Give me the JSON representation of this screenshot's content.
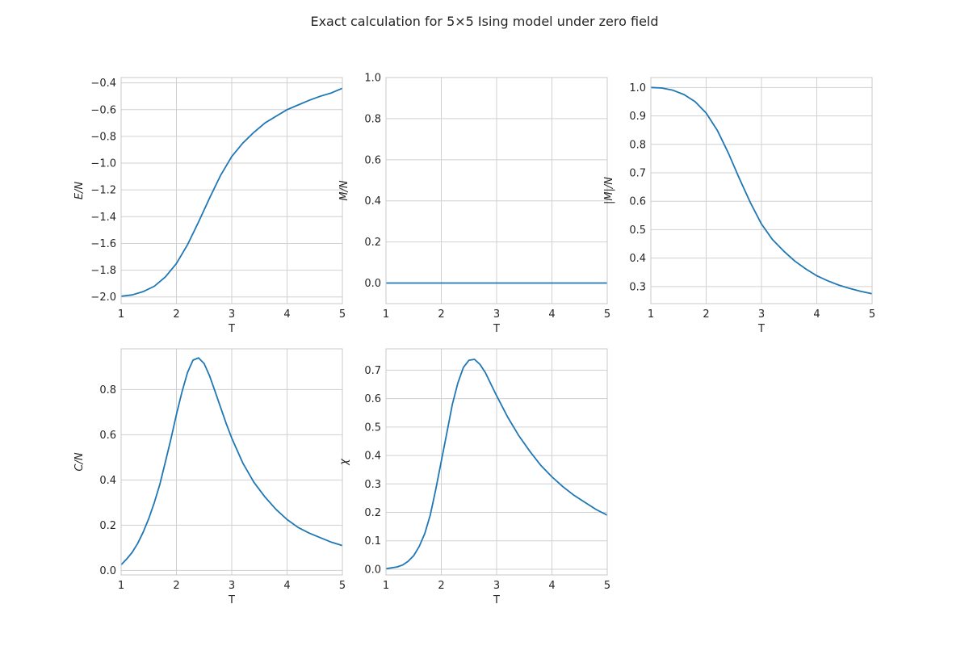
{
  "figure": {
    "title": "Exact calculation for 5×5 Ising model under zero field",
    "line_color": "#1f77b4",
    "grid_color": "#d0d0d0",
    "frame_color": "#c8c8c8"
  },
  "chart_data": [
    {
      "type": "line",
      "xlabel": "T",
      "ylabel": "E/N",
      "xlim": [
        1,
        5
      ],
      "ylim": [
        -2.05,
        -0.36
      ],
      "xticks": [
        1,
        2,
        3,
        4,
        5
      ],
      "yticks": [
        -2.0,
        -1.8,
        -1.6,
        -1.4,
        -1.2,
        -1.0,
        -0.8,
        -0.6,
        -0.4
      ],
      "ytick_labels": [
        "−2.0",
        "−1.8",
        "−1.6",
        "−1.4",
        "−1.2",
        "−1.0",
        "−0.8",
        "−0.6",
        "−0.4"
      ],
      "grid": true,
      "x": [
        1.0,
        1.2,
        1.4,
        1.6,
        1.8,
        2.0,
        2.2,
        2.4,
        2.6,
        2.8,
        3.0,
        3.2,
        3.4,
        3.6,
        3.8,
        4.0,
        4.2,
        4.4,
        4.6,
        4.8,
        5.0
      ],
      "y": [
        -1.995,
        -1.985,
        -1.96,
        -1.92,
        -1.85,
        -1.75,
        -1.61,
        -1.44,
        -1.26,
        -1.09,
        -0.95,
        -0.85,
        -0.77,
        -0.7,
        -0.65,
        -0.6,
        -0.565,
        -0.53,
        -0.5,
        -0.475,
        -0.44
      ]
    },
    {
      "type": "line",
      "xlabel": "T",
      "ylabel": "M/N",
      "xlim": [
        1,
        5
      ],
      "ylim": [
        -0.1,
        1.0
      ],
      "xticks": [
        1,
        2,
        3,
        4,
        5
      ],
      "yticks": [
        0.0,
        0.2,
        0.4,
        0.6,
        0.8,
        1.0
      ],
      "ytick_labels": [
        "0.0",
        "0.2",
        "0.4",
        "0.6",
        "0.8",
        "1.0"
      ],
      "grid": true,
      "x": [
        1.0,
        2.0,
        3.0,
        4.0,
        5.0
      ],
      "y": [
        0.0,
        0.0,
        0.0,
        0.0,
        0.0
      ]
    },
    {
      "type": "line",
      "xlabel": "T",
      "ylabel": "|M|/N",
      "xlim": [
        1,
        5
      ],
      "ylim": [
        0.24,
        1.035
      ],
      "xticks": [
        1,
        2,
        3,
        4,
        5
      ],
      "yticks": [
        0.3,
        0.4,
        0.5,
        0.6,
        0.7,
        0.8,
        0.9,
        1.0
      ],
      "ytick_labels": [
        "0.3",
        "0.4",
        "0.5",
        "0.6",
        "0.7",
        "0.8",
        "0.9",
        "1.0"
      ],
      "grid": true,
      "x": [
        1.0,
        1.2,
        1.4,
        1.6,
        1.8,
        2.0,
        2.2,
        2.4,
        2.6,
        2.8,
        3.0,
        3.2,
        3.4,
        3.6,
        3.8,
        4.0,
        4.2,
        4.4,
        4.6,
        4.8,
        5.0
      ],
      "y": [
        1.0,
        0.998,
        0.99,
        0.975,
        0.95,
        0.91,
        0.85,
        0.77,
        0.68,
        0.595,
        0.52,
        0.465,
        0.425,
        0.39,
        0.362,
        0.338,
        0.32,
        0.305,
        0.293,
        0.283,
        0.275
      ]
    },
    {
      "type": "line",
      "xlabel": "T",
      "ylabel": "C/N",
      "xlim": [
        1,
        5
      ],
      "ylim": [
        -0.02,
        0.98
      ],
      "xticks": [
        1,
        2,
        3,
        4,
        5
      ],
      "yticks": [
        0.0,
        0.2,
        0.4,
        0.6,
        0.8
      ],
      "ytick_labels": [
        "0.0",
        "0.2",
        "0.4",
        "0.6",
        "0.8"
      ],
      "grid": true,
      "x": [
        1.0,
        1.1,
        1.2,
        1.3,
        1.4,
        1.5,
        1.6,
        1.7,
        1.8,
        1.9,
        2.0,
        2.1,
        2.2,
        2.3,
        2.4,
        2.5,
        2.6,
        2.7,
        2.8,
        2.9,
        3.0,
        3.2,
        3.4,
        3.6,
        3.8,
        4.0,
        4.2,
        4.4,
        4.6,
        4.8,
        5.0
      ],
      "y": [
        0.025,
        0.05,
        0.08,
        0.12,
        0.17,
        0.23,
        0.3,
        0.38,
        0.48,
        0.58,
        0.69,
        0.79,
        0.875,
        0.93,
        0.94,
        0.915,
        0.86,
        0.79,
        0.72,
        0.65,
        0.585,
        0.475,
        0.39,
        0.325,
        0.27,
        0.225,
        0.19,
        0.165,
        0.145,
        0.125,
        0.11
      ]
    },
    {
      "type": "line",
      "xlabel": "T",
      "ylabel": "χ",
      "xlim": [
        1,
        5
      ],
      "ylim": [
        -0.02,
        0.775
      ],
      "xticks": [
        1,
        2,
        3,
        4,
        5
      ],
      "yticks": [
        0.0,
        0.1,
        0.2,
        0.3,
        0.4,
        0.5,
        0.6,
        0.7
      ],
      "ytick_labels": [
        "0.0",
        "0.1",
        "0.2",
        "0.3",
        "0.4",
        "0.5",
        "0.6",
        "0.7"
      ],
      "grid": true,
      "x": [
        1.0,
        1.2,
        1.3,
        1.4,
        1.5,
        1.6,
        1.7,
        1.8,
        1.9,
        2.0,
        2.1,
        2.2,
        2.3,
        2.4,
        2.5,
        2.6,
        2.7,
        2.8,
        2.9,
        3.0,
        3.2,
        3.4,
        3.6,
        3.8,
        4.0,
        4.2,
        4.4,
        4.6,
        4.8,
        5.0
      ],
      "y": [
        0.002,
        0.008,
        0.015,
        0.028,
        0.048,
        0.08,
        0.125,
        0.19,
        0.28,
        0.38,
        0.48,
        0.58,
        0.655,
        0.71,
        0.735,
        0.738,
        0.72,
        0.69,
        0.65,
        0.61,
        0.535,
        0.47,
        0.415,
        0.365,
        0.325,
        0.29,
        0.26,
        0.235,
        0.21,
        0.19
      ]
    }
  ]
}
